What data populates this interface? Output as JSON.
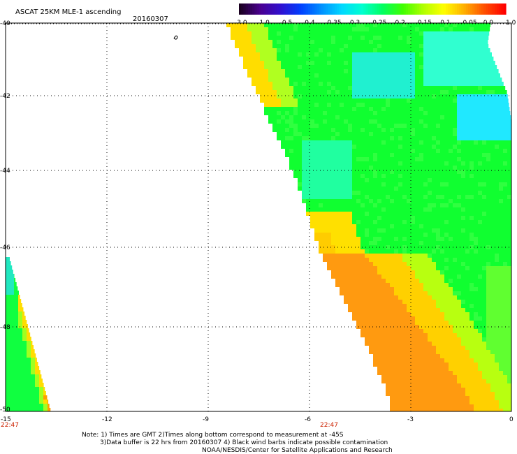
{
  "header": {
    "title": "ASCAT 25KM MLE-1 ascending",
    "date": "20160307"
  },
  "colorbar": {
    "labels": [
      "-3.0",
      "-1.0",
      "-0.5",
      "-0.4",
      "-0.35",
      "-0.3",
      "-0.25",
      "-0.2",
      "-0.15",
      "-0.1",
      "-0.05",
      "0.0",
      "1.0"
    ],
    "colors": [
      "#1a0020",
      "#4a0090",
      "#3010d0",
      "#0040ff",
      "#0090ff",
      "#00d8ff",
      "#00ffd0",
      "#00ff60",
      "#40ff00",
      "#b0ff00",
      "#ffff00",
      "#ffb000",
      "#ff5000",
      "#ff0000"
    ]
  },
  "map": {
    "x_ticks": [
      "-15",
      "-12",
      "-9",
      "-6",
      "-3",
      "0"
    ],
    "y_ticks": [
      "-40",
      "-42",
      "-44",
      "-46",
      "-48",
      "-50"
    ],
    "time_labels": [
      "22:47",
      "22:47"
    ],
    "time_color": "#cc2200"
  },
  "footer": {
    "note1": "Note: 1) Times are GMT 2)Times along bottom correspond to measurement at -45S",
    "note2": "3)Data buffer is 22 hrs from 20160307 4) Black wind barbs indicate possible contamination",
    "note3": "NOAA/NESDIS/Center for Satellite Applications and Research"
  }
}
